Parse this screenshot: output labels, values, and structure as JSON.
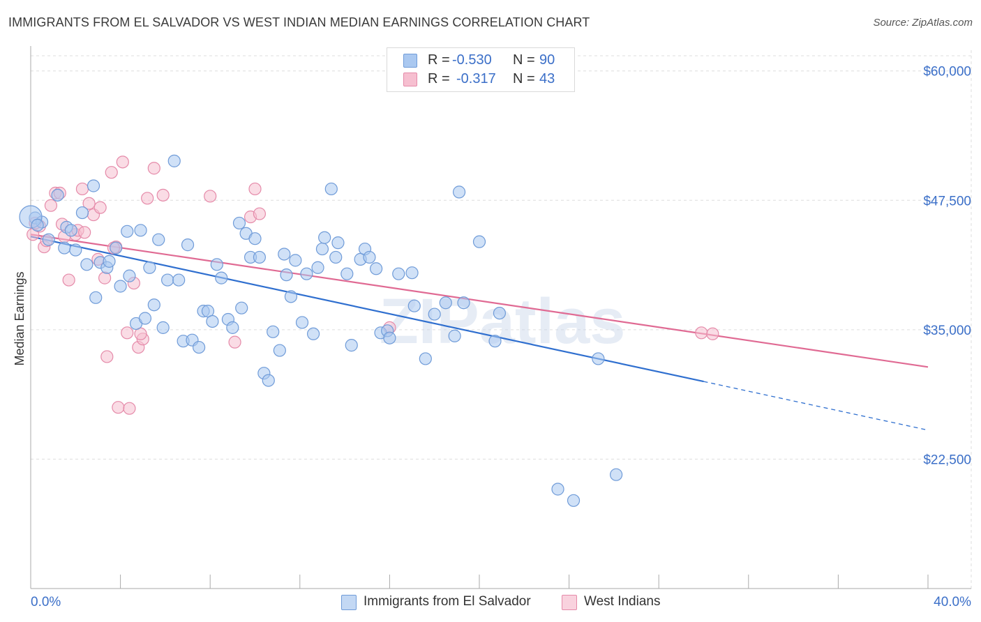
{
  "title": "IMMIGRANTS FROM EL SALVADOR VS WEST INDIAN MEDIAN EARNINGS CORRELATION CHART",
  "source": "Source: ZipAtlas.com",
  "watermark": "ZIPatlas",
  "colors": {
    "blue_fill": "#aac8f0",
    "blue_stroke": "#6f9bd8",
    "blue_line": "#2f6fcf",
    "pink_fill": "#f6bfd0",
    "pink_stroke": "#e58aa9",
    "pink_line": "#e06a93",
    "axis_text": "#3b6fc8",
    "grid": "#dddddd"
  },
  "legend": {
    "rows": [
      {
        "r_label": "R =",
        "r_value": "-0.530",
        "n_label": "N =",
        "n_value": "90"
      },
      {
        "r_label": "R =",
        "r_value": "-0.317",
        "n_label": "N =",
        "n_value": "43"
      }
    ]
  },
  "chart_data": {
    "type": "scatter",
    "ylabel": "Median Earnings",
    "xlabel": "",
    "xlim": [
      0,
      40
    ],
    "ylim": [
      10000,
      62000
    ],
    "x_tick_labels": [
      "0.0%",
      "40.0%"
    ],
    "y_ticks": [
      22500,
      35000,
      47500,
      60000
    ],
    "y_tick_labels": [
      "$22,500",
      "$35,000",
      "$47,500",
      "$60,000"
    ],
    "grid": true,
    "legend_placement": "top-center",
    "series": [
      {
        "name": "Immigrants from El Salvador",
        "color": "blue",
        "trend": {
          "x0": 0,
          "y0": 44000,
          "x1": 30,
          "y1": 30000,
          "dash_to_x": 40,
          "dash_to_y": 25300
        },
        "points": [
          [
            0.2,
            45.8
          ],
          [
            0.5,
            45.4
          ],
          [
            0.8,
            43.7
          ],
          [
            1.2,
            48.0
          ],
          [
            1.5,
            42.9
          ],
          [
            1.6,
            44.9
          ],
          [
            1.8,
            44.6
          ],
          [
            2.0,
            42.7
          ],
          [
            2.3,
            46.3
          ],
          [
            2.5,
            41.3
          ],
          [
            2.8,
            48.9
          ],
          [
            2.9,
            38.1
          ],
          [
            3.1,
            41.5
          ],
          [
            3.4,
            41.0
          ],
          [
            3.5,
            41.6
          ],
          [
            3.8,
            42.9
          ],
          [
            4.0,
            39.2
          ],
          [
            4.3,
            44.5
          ],
          [
            4.4,
            40.2
          ],
          [
            4.7,
            35.6
          ],
          [
            4.9,
            44.6
          ],
          [
            5.1,
            36.1
          ],
          [
            5.3,
            41.0
          ],
          [
            5.5,
            37.4
          ],
          [
            5.7,
            43.7
          ],
          [
            5.9,
            35.2
          ],
          [
            6.1,
            39.8
          ],
          [
            6.4,
            51.3
          ],
          [
            6.6,
            39.8
          ],
          [
            6.8,
            33.9
          ],
          [
            7.0,
            43.2
          ],
          [
            7.2,
            34.0
          ],
          [
            7.5,
            33.3
          ],
          [
            7.7,
            36.8
          ],
          [
            7.9,
            36.8
          ],
          [
            8.1,
            35.8
          ],
          [
            8.3,
            41.3
          ],
          [
            8.5,
            40.0
          ],
          [
            8.8,
            36.0
          ],
          [
            9.0,
            35.2
          ],
          [
            9.3,
            45.3
          ],
          [
            9.4,
            37.1
          ],
          [
            9.6,
            44.3
          ],
          [
            9.8,
            42.0
          ],
          [
            10.0,
            43.8
          ],
          [
            10.2,
            42.0
          ],
          [
            10.4,
            30.8
          ],
          [
            10.6,
            30.1
          ],
          [
            10.8,
            34.8
          ],
          [
            11.1,
            33.0
          ],
          [
            11.3,
            42.3
          ],
          [
            11.4,
            40.3
          ],
          [
            11.6,
            38.2
          ],
          [
            11.8,
            41.7
          ],
          [
            12.1,
            35.7
          ],
          [
            12.3,
            40.4
          ],
          [
            12.6,
            34.6
          ],
          [
            12.8,
            41.0
          ],
          [
            13.0,
            42.8
          ],
          [
            13.1,
            43.9
          ],
          [
            13.4,
            48.6
          ],
          [
            13.6,
            42.0
          ],
          [
            13.7,
            43.4
          ],
          [
            14.1,
            40.4
          ],
          [
            14.3,
            33.5
          ],
          [
            14.7,
            41.8
          ],
          [
            14.9,
            42.8
          ],
          [
            15.1,
            42.0
          ],
          [
            15.4,
            40.9
          ],
          [
            15.6,
            34.7
          ],
          [
            15.9,
            34.9
          ],
          [
            16.0,
            34.2
          ],
          [
            16.4,
            40.4
          ],
          [
            17.0,
            40.5
          ],
          [
            17.1,
            37.3
          ],
          [
            17.6,
            32.2
          ],
          [
            18.0,
            36.5
          ],
          [
            18.5,
            37.6
          ],
          [
            18.9,
            34.4
          ],
          [
            19.1,
            48.3
          ],
          [
            19.3,
            37.6
          ],
          [
            20.0,
            43.5
          ],
          [
            20.7,
            33.9
          ],
          [
            20.9,
            36.6
          ],
          [
            23.5,
            19.6
          ],
          [
            24.2,
            18.5
          ],
          [
            25.3,
            32.2
          ],
          [
            26.1,
            21.0
          ],
          [
            0.0,
            45.9
          ],
          [
            0.3,
            45.1
          ]
        ]
      },
      {
        "name": "West Indians",
        "color": "pink",
        "trend": {
          "x0": 0,
          "y0": 44200,
          "x1": 40,
          "y1": 31400
        },
        "points": [
          [
            0.1,
            44.2
          ],
          [
            0.4,
            45.0
          ],
          [
            0.6,
            43.0
          ],
          [
            0.9,
            47.0
          ],
          [
            1.1,
            48.2
          ],
          [
            1.4,
            45.2
          ],
          [
            1.7,
            39.8
          ],
          [
            2.0,
            44.2
          ],
          [
            2.3,
            48.6
          ],
          [
            2.6,
            47.2
          ],
          [
            2.8,
            46.1
          ],
          [
            3.0,
            41.8
          ],
          [
            3.1,
            46.8
          ],
          [
            3.3,
            40.0
          ],
          [
            3.4,
            32.4
          ],
          [
            3.6,
            50.2
          ],
          [
            3.8,
            43.0
          ],
          [
            3.9,
            27.5
          ],
          [
            4.1,
            51.2
          ],
          [
            4.3,
            34.7
          ],
          [
            4.4,
            27.4
          ],
          [
            4.6,
            39.5
          ],
          [
            4.8,
            33.3
          ],
          [
            5.0,
            34.1
          ],
          [
            5.2,
            47.7
          ],
          [
            5.5,
            50.6
          ],
          [
            5.9,
            48.0
          ],
          [
            8.0,
            47.9
          ],
          [
            9.1,
            33.8
          ],
          [
            9.8,
            45.9
          ],
          [
            10.0,
            48.6
          ],
          [
            10.2,
            46.2
          ],
          [
            1.5,
            44.0
          ],
          [
            2.1,
            44.6
          ],
          [
            0.7,
            43.6
          ],
          [
            1.3,
            48.2
          ],
          [
            2.4,
            44.4
          ],
          [
            3.7,
            42.9
          ],
          [
            4.9,
            34.6
          ],
          [
            16.0,
            35.2
          ],
          [
            29.9,
            34.7
          ],
          [
            30.4,
            34.6
          ],
          [
            0.2,
            45.3
          ]
        ]
      }
    ]
  },
  "bottom_legend": {
    "series_a": "Immigrants from El Salvador",
    "series_b": "West Indians"
  }
}
